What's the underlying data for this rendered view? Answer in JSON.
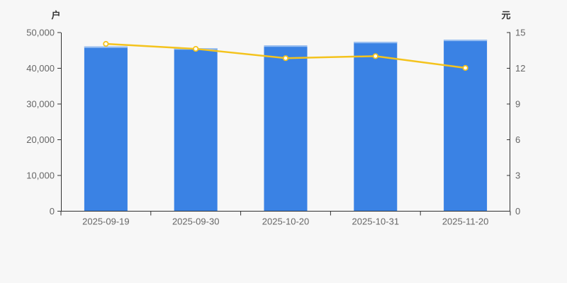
{
  "chart_data": {
    "type": "bar+line dual-axis",
    "title": "",
    "categories": [
      "2025-09-19",
      "2025-09-30",
      "2025-10-20",
      "2025-10-31",
      "2025-11-20"
    ],
    "series": [
      {
        "type": "bar",
        "y_axis": "left",
        "unit": "户",
        "values": [
          46100,
          45600,
          46400,
          47400,
          48000
        ],
        "color": "#3a82e4",
        "bar_top_highlight_color": "#9dc1f1"
      },
      {
        "type": "line",
        "y_axis": "right",
        "unit": "元",
        "values": [
          14.05,
          13.63,
          12.85,
          13.02,
          12.03
        ],
        "color": "#f4c31d",
        "marker": "open-circle",
        "marker_fill": "#ffffff"
      }
    ],
    "left_axis": {
      "name": "户",
      "min": 0,
      "max": 50000,
      "tick_interval": 10000,
      "tick_labels": [
        "0",
        "10,000",
        "20,000",
        "30,000",
        "40,000",
        "50,000"
      ]
    },
    "right_axis": {
      "name": "元",
      "min": 0,
      "max": 15,
      "tick_interval": 3,
      "tick_labels": [
        "0",
        "3",
        "6",
        "9",
        "12",
        "15"
      ]
    },
    "grid": false,
    "legend": false,
    "background_color": "#f7f7f7",
    "axis_line_color": "#333333",
    "tick_label_color": "#666666"
  }
}
